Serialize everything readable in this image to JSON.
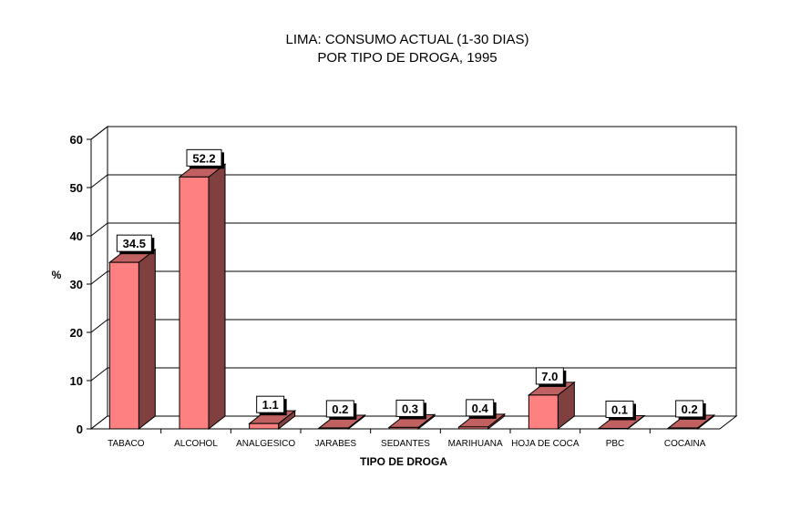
{
  "chart_data": {
    "type": "bar",
    "title": "LIMA: CONSUMO ACTUAL (1-30 DIAS)",
    "subtitle": "POR TIPO DE DROGA, 1995",
    "xlabel": "TIPO DE DROGA",
    "ylabel": "%",
    "ylim": [
      0,
      60
    ],
    "yticks": [
      0,
      10,
      20,
      30,
      40,
      50,
      60
    ],
    "grid": true,
    "categories": [
      "TABACO",
      "ALCOHOL",
      "ANALGESICO",
      "JARABES",
      "SEDANTES",
      "MARIHUANA",
      "HOJA DE COCA",
      "PBC",
      "COCAINA"
    ],
    "values": [
      34.5,
      52.2,
      1.1,
      0.2,
      0.3,
      0.4,
      7.0,
      0.1,
      0.2
    ],
    "data_labels": [
      "34.5",
      "52.2",
      "1.1",
      "0.2",
      "0.3",
      "0.4",
      "7.0",
      "0.1",
      "0.2"
    ],
    "colors": {
      "bar_front": "#ff8080",
      "bar_side": "#804040",
      "bar_top": "#c06060"
    }
  }
}
